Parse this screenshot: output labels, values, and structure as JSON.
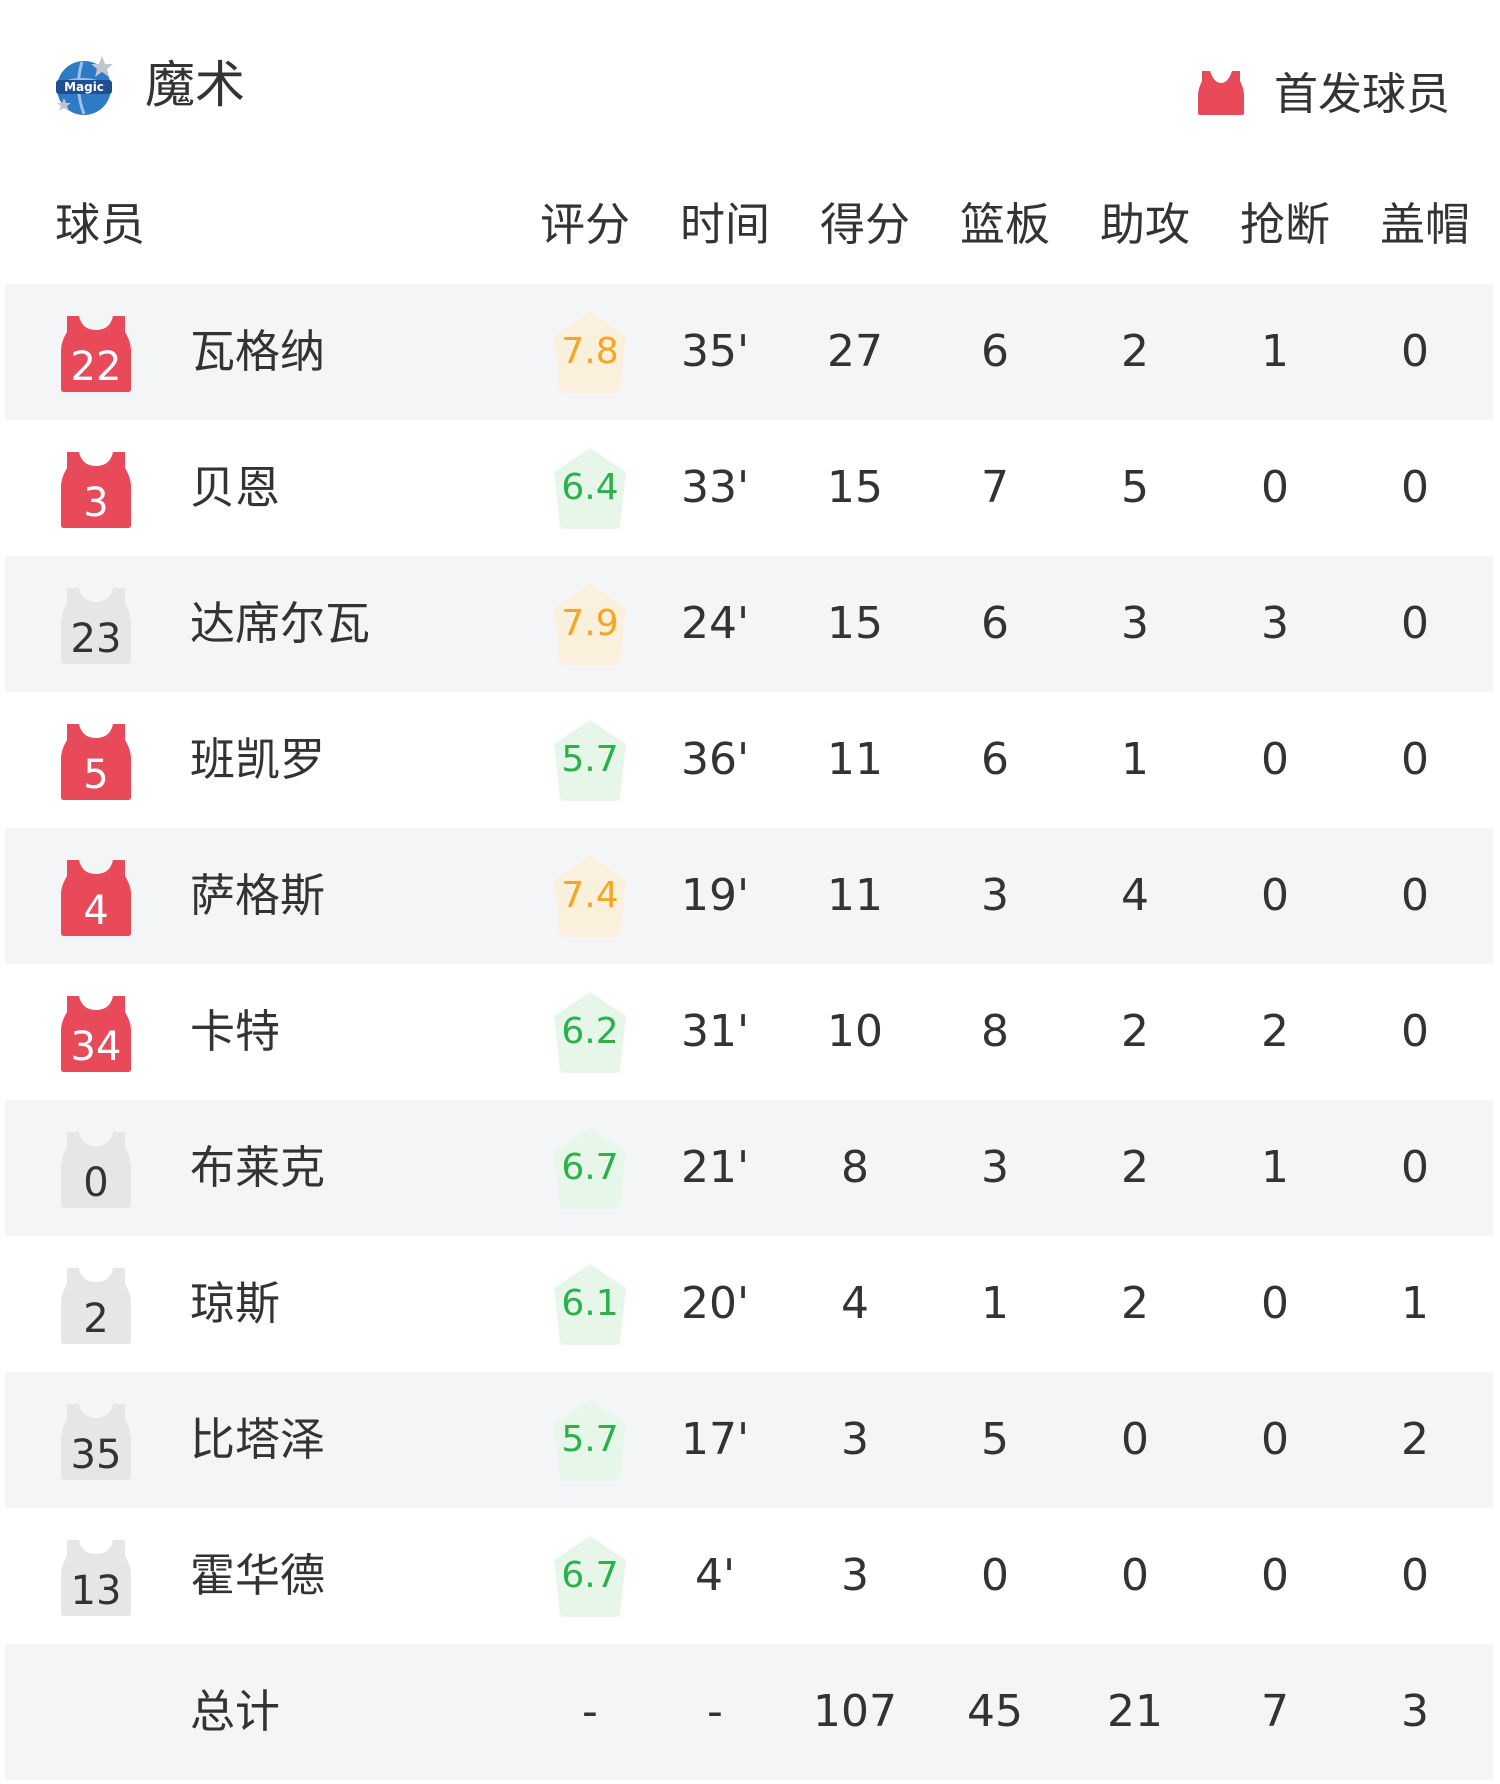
{
  "header": {
    "team": "魔术",
    "logo_icon": "orlando-magic-logo",
    "legend_label": "首发球员",
    "legend_color": "#e84a5a"
  },
  "columns": [
    "球员",
    "评分",
    "时间",
    "得分",
    "篮板",
    "助攻",
    "抢断",
    "盖帽"
  ],
  "colors": {
    "starter": "#e84a5a",
    "bench": "#e6e6e6",
    "rating_high_text": "#f5a623",
    "rating_high_bg": "#fbf0dc",
    "rating_mid_text": "#2bb04a",
    "rating_mid_bg": "#e6f6e9"
  },
  "players": [
    {
      "number": "22",
      "name": "瓦格纳",
      "starter": true,
      "rating": "7.8",
      "time": "35'",
      "pts": "27",
      "reb": "6",
      "ast": "2",
      "stl": "1",
      "blk": "0"
    },
    {
      "number": "3",
      "name": "贝恩",
      "starter": true,
      "rating": "6.4",
      "time": "33'",
      "pts": "15",
      "reb": "7",
      "ast": "5",
      "stl": "0",
      "blk": "0"
    },
    {
      "number": "23",
      "name": "达席尔瓦",
      "starter": false,
      "rating": "7.9",
      "time": "24'",
      "pts": "15",
      "reb": "6",
      "ast": "3",
      "stl": "3",
      "blk": "0"
    },
    {
      "number": "5",
      "name": "班凯罗",
      "starter": true,
      "rating": "5.7",
      "time": "36'",
      "pts": "11",
      "reb": "6",
      "ast": "1",
      "stl": "0",
      "blk": "0"
    },
    {
      "number": "4",
      "name": "萨格斯",
      "starter": true,
      "rating": "7.4",
      "time": "19'",
      "pts": "11",
      "reb": "3",
      "ast": "4",
      "stl": "0",
      "blk": "0"
    },
    {
      "number": "34",
      "name": "卡特",
      "starter": true,
      "rating": "6.2",
      "time": "31'",
      "pts": "10",
      "reb": "8",
      "ast": "2",
      "stl": "2",
      "blk": "0"
    },
    {
      "number": "0",
      "name": "布莱克",
      "starter": false,
      "rating": "6.7",
      "time": "21'",
      "pts": "8",
      "reb": "3",
      "ast": "2",
      "stl": "1",
      "blk": "0"
    },
    {
      "number": "2",
      "name": "琼斯",
      "starter": false,
      "rating": "6.1",
      "time": "20'",
      "pts": "4",
      "reb": "1",
      "ast": "2",
      "stl": "0",
      "blk": "1"
    },
    {
      "number": "35",
      "name": "比塔泽",
      "starter": false,
      "rating": "5.7",
      "time": "17'",
      "pts": "3",
      "reb": "5",
      "ast": "0",
      "stl": "0",
      "blk": "2"
    },
    {
      "number": "13",
      "name": "霍华德",
      "starter": false,
      "rating": "6.7",
      "time": "4'",
      "pts": "3",
      "reb": "0",
      "ast": "0",
      "stl": "0",
      "blk": "0"
    }
  ],
  "total": {
    "label": "总计",
    "rating": "-",
    "time": "-",
    "pts": "107",
    "reb": "45",
    "ast": "21",
    "stl": "7",
    "blk": "3"
  }
}
